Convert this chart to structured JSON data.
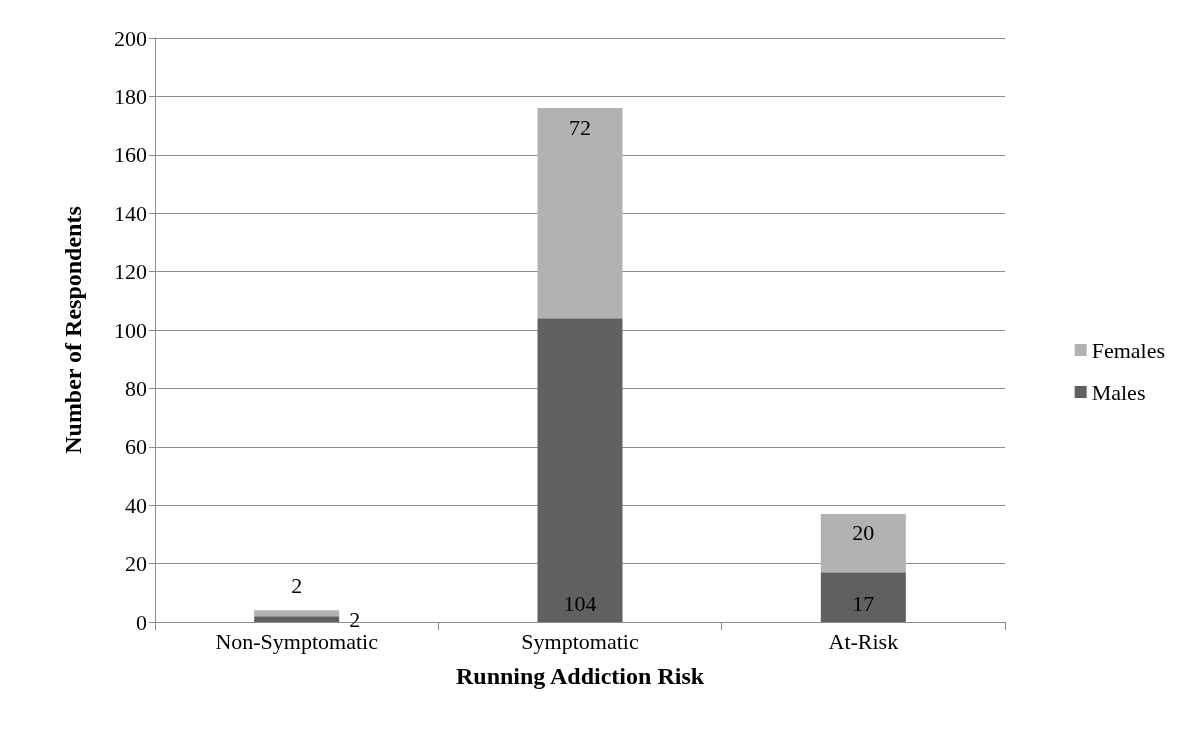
{
  "chart_data": {
    "type": "bar",
    "xlabel": "Running Addiction Risk",
    "ylabel": "Number of Respondents",
    "categories": [
      "Non-Symptomatic",
      "Symptomatic",
      "At-Risk"
    ],
    "series": [
      {
        "name": "Males",
        "color": "#606060",
        "values": [
          2,
          104,
          17
        ]
      },
      {
        "name": "Females",
        "color": "#b2b2b2",
        "values": [
          2,
          72,
          20
        ]
      }
    ],
    "stacked": true,
    "data_labels": true,
    "ylim": [
      0,
      200
    ],
    "yticks": [
      0,
      20,
      40,
      60,
      80,
      100,
      120,
      140,
      160,
      180,
      200
    ],
    "grid": "y",
    "legend": "right"
  }
}
